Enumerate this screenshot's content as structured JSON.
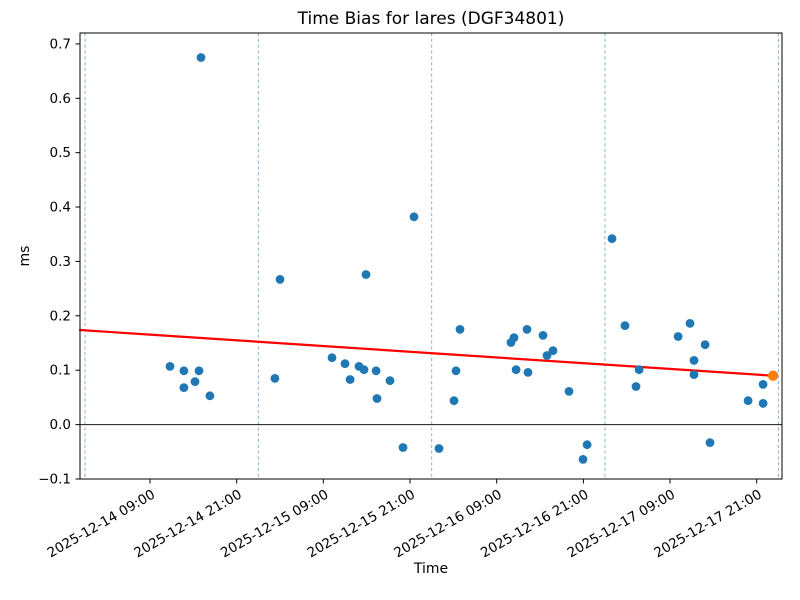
{
  "chart_data": {
    "type": "scatter",
    "title": "Time Bias for lares (DGF34801)",
    "xlabel": "Time",
    "ylabel": "ms",
    "ylim": [
      -0.1,
      0.72
    ],
    "xlim_hours": [
      -0.69,
      96.5
    ],
    "time_origin": "2025-12-14 00:00",
    "grid": "vertical-dashed-at-midnight",
    "legend": "none",
    "y_ticks": [
      -0.1,
      0.0,
      0.1,
      0.2,
      0.3,
      0.4,
      0.5,
      0.6,
      0.7
    ],
    "x_ticks": [
      "2025-12-14 09:00",
      "2025-12-14 21:00",
      "2025-12-15 09:00",
      "2025-12-15 21:00",
      "2025-12-16 09:00",
      "2025-12-16 21:00",
      "2025-12-17 09:00",
      "2025-12-17 21:00"
    ],
    "day_gridlines": [
      "2025-12-14 00:00",
      "2025-12-15 00:00",
      "2025-12-16 00:00",
      "2025-12-17 00:00",
      "2025-12-18 00:00"
    ],
    "colors": {
      "point": "#1f77b4",
      "latest_point": "#ff7f0e",
      "trend": "#ff0000",
      "gridline": "#79abd2",
      "zero_line": "#1a1a1a",
      "spine": "#000000"
    },
    "trend_line": {
      "color": "#ff0000",
      "start_time": "2025-12-13 23:19",
      "start_ms": 0.174,
      "end_time": "2025-12-17 23:16",
      "end_ms": 0.09
    },
    "zero_line": true,
    "series": [
      {
        "name": "time-bias",
        "color": "#1f77b4",
        "marker_radius": 4.4,
        "points": [
          [
            "2025-12-14 11:46",
            0.107
          ],
          [
            "2025-12-14 13:42",
            0.099
          ],
          [
            "2025-12-14 13:42",
            0.068
          ],
          [
            "2025-12-14 15:14",
            0.079
          ],
          [
            "2025-12-14 15:47",
            0.099
          ],
          [
            "2025-12-14 16:04",
            0.675
          ],
          [
            "2025-12-14 17:18",
            0.053
          ],
          [
            "2025-12-15 02:18",
            0.085
          ],
          [
            "2025-12-15 03:00",
            0.267
          ],
          [
            "2025-12-15 10:12",
            0.123
          ],
          [
            "2025-12-15 12:00",
            0.112
          ],
          [
            "2025-12-15 12:42",
            0.083
          ],
          [
            "2025-12-15 13:56",
            0.107
          ],
          [
            "2025-12-15 14:38",
            0.101
          ],
          [
            "2025-12-15 14:54",
            0.276
          ],
          [
            "2025-12-15 16:18",
            0.099
          ],
          [
            "2025-12-15 16:26",
            0.048
          ],
          [
            "2025-12-15 18:14",
            0.081
          ],
          [
            "2025-12-15 20:02",
            -0.042
          ],
          [
            "2025-12-15 21:33",
            0.382
          ],
          [
            "2025-12-16 01:01",
            -0.044
          ],
          [
            "2025-12-16 03:05",
            0.044
          ],
          [
            "2025-12-16 03:22",
            0.099
          ],
          [
            "2025-12-16 03:55",
            0.175
          ],
          [
            "2025-12-16 10:59",
            0.151
          ],
          [
            "2025-12-16 11:24",
            0.16
          ],
          [
            "2025-12-16 11:41",
            0.101
          ],
          [
            "2025-12-16 13:12",
            0.175
          ],
          [
            "2025-12-16 13:20",
            0.096
          ],
          [
            "2025-12-16 15:25",
            0.164
          ],
          [
            "2025-12-16 15:58",
            0.127
          ],
          [
            "2025-12-16 16:48",
            0.136
          ],
          [
            "2025-12-16 19:01",
            0.061
          ],
          [
            "2025-12-16 20:57",
            -0.064
          ],
          [
            "2025-12-16 21:31",
            -0.037
          ],
          [
            "2025-12-17 00:58",
            0.342
          ],
          [
            "2025-12-17 02:46",
            0.182
          ],
          [
            "2025-12-17 04:17",
            0.07
          ],
          [
            "2025-12-17 04:43",
            0.101
          ],
          [
            "2025-12-17 10:07",
            0.162
          ],
          [
            "2025-12-17 11:46",
            0.186
          ],
          [
            "2025-12-17 12:19",
            0.118
          ],
          [
            "2025-12-17 12:19",
            0.092
          ],
          [
            "2025-12-17 13:51",
            0.147
          ],
          [
            "2025-12-17 14:32",
            -0.033
          ],
          [
            "2025-12-17 19:48",
            0.044
          ],
          [
            "2025-12-17 21:53",
            0.074
          ],
          [
            "2025-12-17 21:53",
            0.039
          ]
        ]
      },
      {
        "name": "latest",
        "color": "#ff7f0e",
        "marker_radius": 5.2,
        "points": [
          [
            "2025-12-17 23:16",
            0.09
          ]
        ]
      }
    ]
  }
}
